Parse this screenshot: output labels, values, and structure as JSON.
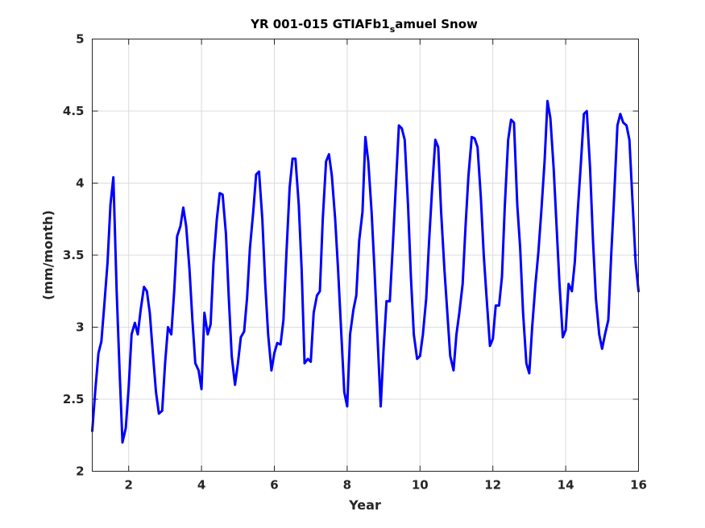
{
  "chart_data": {
    "type": "line",
    "title_main": "YR 001-015 GTIAFb1",
    "title_sub": "s",
    "title_rest": "amuel Snow",
    "xlabel": "Year",
    "ylabel": "(mm/month)",
    "xlim": [
      1,
      16
    ],
    "ylim": [
      2,
      5
    ],
    "xticks": [
      2,
      4,
      6,
      8,
      10,
      12,
      14,
      16
    ],
    "yticks": [
      2,
      2.5,
      3,
      3.5,
      4,
      4.5,
      5
    ],
    "xtick_labels": [
      "2",
      "4",
      "6",
      "8",
      "10",
      "12",
      "14",
      "16"
    ],
    "ytick_labels": [
      "2",
      "2.5",
      "3",
      "3.5",
      "4",
      "4.5",
      "5"
    ],
    "grid": true,
    "series": [
      {
        "color": "#0000ff",
        "x": [
          1.0,
          1.08,
          1.17,
          1.25,
          1.33,
          1.42,
          1.5,
          1.58,
          1.67,
          1.75,
          1.83,
          1.92,
          2.0,
          2.08,
          2.17,
          2.25,
          2.33,
          2.42,
          2.5,
          2.58,
          2.67,
          2.75,
          2.83,
          2.92,
          3.0,
          3.08,
          3.17,
          3.25,
          3.33,
          3.42,
          3.5,
          3.58,
          3.67,
          3.75,
          3.83,
          3.92,
          4.0,
          4.08,
          4.17,
          4.25,
          4.33,
          4.42,
          4.5,
          4.58,
          4.67,
          4.75,
          4.83,
          4.92,
          5.0,
          5.08,
          5.17,
          5.25,
          5.33,
          5.42,
          5.5,
          5.58,
          5.67,
          5.75,
          5.83,
          5.92,
          6.0,
          6.08,
          6.17,
          6.25,
          6.33,
          6.42,
          6.5,
          6.58,
          6.67,
          6.75,
          6.83,
          6.92,
          7.0,
          7.08,
          7.17,
          7.25,
          7.33,
          7.42,
          7.5,
          7.58,
          7.67,
          7.75,
          7.83,
          7.92,
          8.0,
          8.08,
          8.17,
          8.25,
          8.33,
          8.42,
          8.5,
          8.58,
          8.67,
          8.75,
          8.83,
          8.92,
          9.0,
          9.08,
          9.17,
          9.25,
          9.33,
          9.42,
          9.5,
          9.58,
          9.67,
          9.75,
          9.83,
          9.92,
          10.0,
          10.08,
          10.17,
          10.25,
          10.33,
          10.42,
          10.5,
          10.58,
          10.67,
          10.75,
          10.83,
          10.92,
          11.0,
          11.08,
          11.17,
          11.25,
          11.33,
          11.42,
          11.5,
          11.58,
          11.67,
          11.75,
          11.83,
          11.92,
          12.0,
          12.08,
          12.17,
          12.25,
          12.33,
          12.42,
          12.5,
          12.58,
          12.67,
          12.75,
          12.83,
          12.92,
          13.0,
          13.08,
          13.17,
          13.25,
          13.33,
          13.42,
          13.5,
          13.58,
          13.67,
          13.75,
          13.83,
          13.92,
          14.0,
          14.08,
          14.17,
          14.25,
          14.33,
          14.42,
          14.5,
          14.58,
          14.67,
          14.75,
          14.83,
          14.92,
          15.0,
          15.08,
          15.17,
          15.25,
          15.33,
          15.42,
          15.5,
          15.58,
          15.67,
          15.75,
          15.83,
          15.92,
          16.0
        ],
        "y": [
          2.28,
          2.55,
          2.82,
          2.9,
          3.15,
          3.45,
          3.85,
          4.04,
          3.25,
          2.7,
          2.2,
          2.3,
          2.58,
          2.95,
          3.03,
          2.95,
          3.12,
          3.28,
          3.25,
          3.1,
          2.8,
          2.55,
          2.4,
          2.42,
          2.75,
          3.0,
          2.95,
          3.25,
          3.63,
          3.7,
          3.83,
          3.7,
          3.4,
          3.05,
          2.75,
          2.7,
          2.57,
          3.1,
          2.95,
          3.02,
          3.45,
          3.75,
          3.93,
          3.92,
          3.65,
          3.2,
          2.8,
          2.6,
          2.75,
          2.93,
          2.97,
          3.2,
          3.55,
          3.8,
          4.06,
          4.08,
          3.75,
          3.3,
          2.95,
          2.7,
          2.82,
          2.89,
          2.88,
          3.05,
          3.5,
          3.97,
          4.17,
          4.17,
          3.85,
          3.4,
          2.75,
          2.78,
          2.76,
          3.1,
          3.22,
          3.25,
          3.75,
          4.15,
          4.2,
          4.05,
          3.75,
          3.4,
          3.0,
          2.55,
          2.45,
          2.95,
          3.12,
          3.22,
          3.6,
          3.8,
          4.32,
          4.15,
          3.8,
          3.4,
          2.95,
          2.45,
          2.85,
          3.18,
          3.18,
          3.55,
          3.95,
          4.4,
          4.38,
          4.3,
          3.85,
          3.35,
          2.95,
          2.78,
          2.8,
          2.95,
          3.2,
          3.6,
          3.95,
          4.3,
          4.25,
          3.8,
          3.4,
          3.1,
          2.8,
          2.7,
          2.95,
          3.1,
          3.3,
          3.7,
          4.05,
          4.32,
          4.31,
          4.25,
          3.9,
          3.5,
          3.2,
          2.87,
          2.92,
          3.15,
          3.15,
          3.35,
          3.85,
          4.3,
          4.44,
          4.42,
          3.85,
          3.55,
          3.1,
          2.75,
          2.68,
          3.0,
          3.3,
          3.52,
          3.8,
          4.15,
          4.57,
          4.45,
          4.1,
          3.7,
          3.3,
          2.93,
          2.98,
          3.3,
          3.25,
          3.45,
          3.8,
          4.15,
          4.48,
          4.5,
          4.1,
          3.6,
          3.2,
          2.95,
          2.85,
          2.95,
          3.05,
          3.5,
          3.9,
          4.4,
          4.48,
          4.42,
          4.4,
          4.3,
          3.9,
          3.45,
          3.25
        ]
      }
    ]
  }
}
